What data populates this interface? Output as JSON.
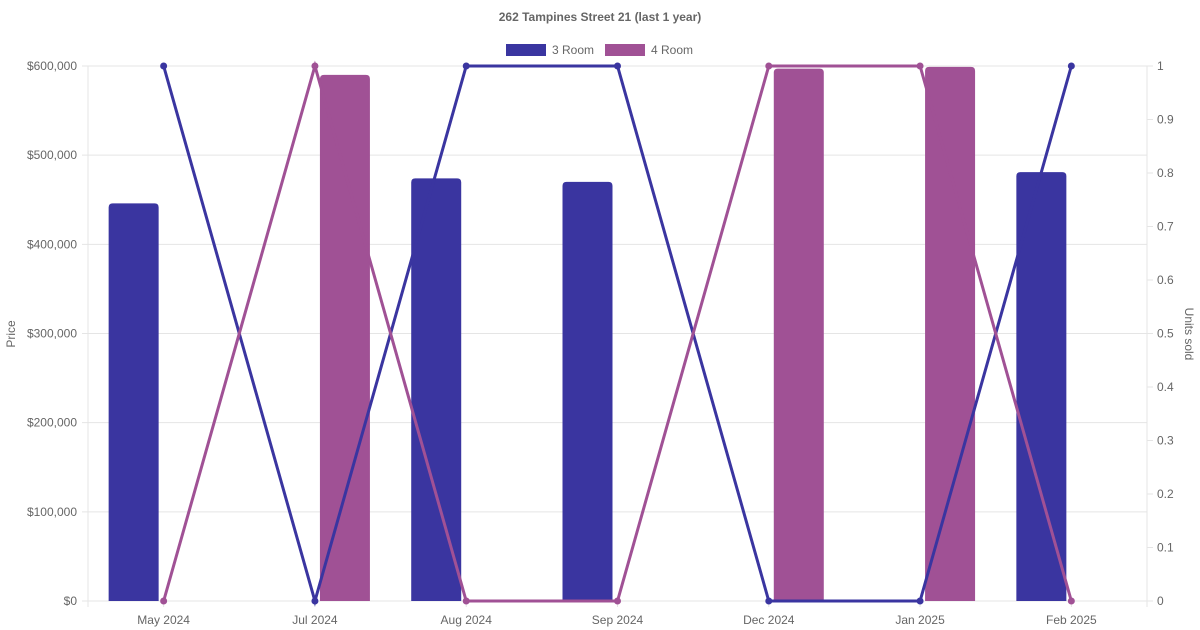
{
  "chart_data": {
    "type": "bar+line",
    "title": "262 Tampines Street 21 (last 1 year)",
    "categories": [
      "May 2024",
      "Jul 2024",
      "Aug 2024",
      "Sep 2024",
      "Dec 2024",
      "Jan 2025",
      "Feb 2025"
    ],
    "ylabel": "Price",
    "y2label": "Units sold",
    "ylim": [
      0,
      600000
    ],
    "y2lim": [
      0,
      1
    ],
    "yticks": [
      "$0",
      "$100,000",
      "$200,000",
      "$300,000",
      "$400,000",
      "$500,000",
      "$600,000"
    ],
    "y2ticks": [
      "0",
      "0.1",
      "0.2",
      "0.3",
      "0.4",
      "0.5",
      "0.6",
      "0.7",
      "0.8",
      "0.9",
      "1"
    ],
    "grid": true,
    "legend_placement": "top",
    "series": [
      {
        "name": "3 Room",
        "color": "#3a35a0",
        "price": [
          446000,
          null,
          474000,
          470000,
          null,
          null,
          481000
        ],
        "units": [
          1,
          0,
          1,
          1,
          0,
          0,
          1
        ]
      },
      {
        "name": "4 Room",
        "color": "#a05195",
        "price": [
          null,
          590000,
          null,
          null,
          597000,
          599000,
          null
        ],
        "units": [
          0,
          1,
          0,
          0,
          1,
          1,
          0
        ]
      }
    ]
  }
}
